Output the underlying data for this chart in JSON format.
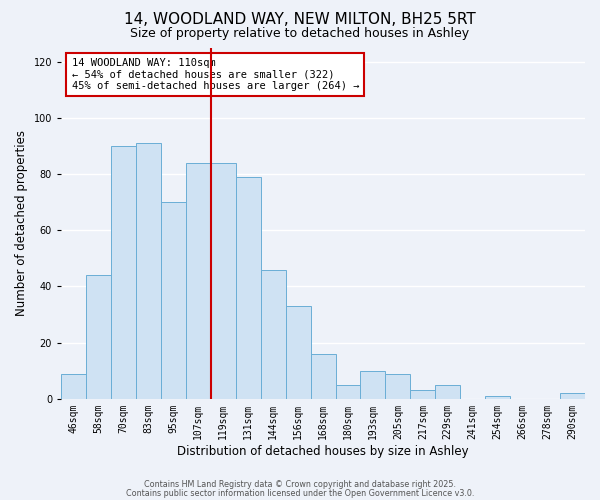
{
  "title": "14, WOODLAND WAY, NEW MILTON, BH25 5RT",
  "subtitle": "Size of property relative to detached houses in Ashley",
  "xlabel": "Distribution of detached houses by size in Ashley",
  "ylabel": "Number of detached properties",
  "bar_labels": [
    "46sqm",
    "58sqm",
    "70sqm",
    "83sqm",
    "95sqm",
    "107sqm",
    "119sqm",
    "131sqm",
    "144sqm",
    "156sqm",
    "168sqm",
    "180sqm",
    "193sqm",
    "205sqm",
    "217sqm",
    "229sqm",
    "241sqm",
    "254sqm",
    "266sqm",
    "278sqm",
    "290sqm"
  ],
  "bar_values": [
    9,
    44,
    90,
    91,
    70,
    84,
    84,
    79,
    46,
    33,
    16,
    5,
    10,
    9,
    3,
    5,
    0,
    1,
    0,
    0,
    2
  ],
  "bar_color": "#cfe2f3",
  "bar_edge_color": "#6aaed6",
  "vline_x_index": 6,
  "vline_color": "#cc0000",
  "annotation_text": "14 WOODLAND WAY: 110sqm\n← 54% of detached houses are smaller (322)\n45% of semi-detached houses are larger (264) →",
  "annotation_box_color": "#ffffff",
  "annotation_box_edge": "#cc0000",
  "ylim": [
    0,
    125
  ],
  "yticks": [
    0,
    20,
    40,
    60,
    80,
    100,
    120
  ],
  "footer1": "Contains HM Land Registry data © Crown copyright and database right 2025.",
  "footer2": "Contains public sector information licensed under the Open Government Licence v3.0.",
  "bg_color": "#eef2f9",
  "grid_color": "#ffffff",
  "title_fontsize": 11,
  "subtitle_fontsize": 9,
  "axis_label_fontsize": 8.5,
  "tick_fontsize": 7,
  "annotation_fontsize": 7.5,
  "footer_fontsize": 5.8
}
